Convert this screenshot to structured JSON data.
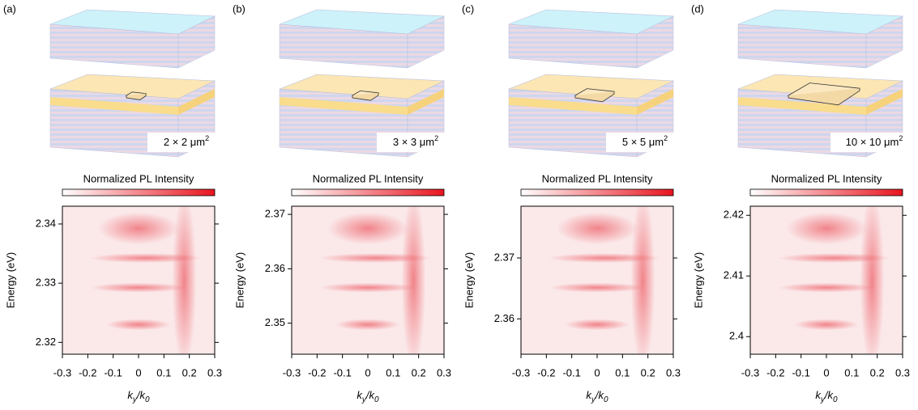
{
  "chart_data": [
    {
      "type": "heatmap",
      "panel": "(a)",
      "size_label": [
        "2 × 2 μm",
        "2"
      ],
      "colorbar_label": "Normalized PL Intensity",
      "xlabel": [
        "k",
        "y",
        "/k",
        "0"
      ],
      "ylabel": "Energy (eV)",
      "xlim": [
        -0.3,
        0.3
      ],
      "xticks": [
        -0.3,
        -0.2,
        -0.1,
        0,
        0.1,
        0.2,
        0.3
      ],
      "ylim": [
        2.318,
        2.343
      ],
      "yticks": [
        2.32,
        2.33,
        2.34
      ]
    },
    {
      "type": "heatmap",
      "panel": "(b)",
      "size_label": [
        "3 × 3 μm",
        "2"
      ],
      "colorbar_label": "Normalized PL Intensity",
      "xlabel": [
        "k",
        "y",
        "/k",
        "0"
      ],
      "ylabel": "Energy (eV)",
      "xlim": [
        -0.3,
        0.3
      ],
      "xticks": [
        -0.3,
        -0.2,
        -0.1,
        0,
        0.1,
        0.2,
        0.3
      ],
      "ylim": [
        2.3443,
        2.3715
      ],
      "yticks": [
        2.35,
        2.36,
        2.37
      ]
    },
    {
      "type": "heatmap",
      "panel": "(c)",
      "size_label": [
        "5 × 5 μm",
        "2"
      ],
      "colorbar_label": "Normalized PL Intensity",
      "xlabel": [
        "k",
        "y",
        "/k",
        "0"
      ],
      "ylabel": "Energy (eV)",
      "xlim": [
        -0.3,
        0.3
      ],
      "xticks": [
        -0.3,
        -0.2,
        -0.1,
        0,
        0.1,
        0.2,
        0.3
      ],
      "ylim": [
        2.3542,
        2.3785
      ],
      "yticks": [
        2.36,
        2.37
      ]
    },
    {
      "type": "heatmap",
      "panel": "(d)",
      "size_label": [
        "10 × 10 μm",
        "2"
      ],
      "colorbar_label": "Normalized PL Intensity",
      "xlabel": [
        "k",
        "y",
        "/k",
        "0"
      ],
      "ylabel": "Energy (eV)",
      "xlim": [
        -0.3,
        0.3
      ],
      "xticks": [
        -0.3,
        -0.2,
        -0.1,
        0,
        0.1,
        0.2,
        0.3
      ],
      "ylim": [
        2.3971,
        2.4215
      ],
      "yticks": [
        2.4,
        2.41,
        2.42
      ]
    }
  ]
}
